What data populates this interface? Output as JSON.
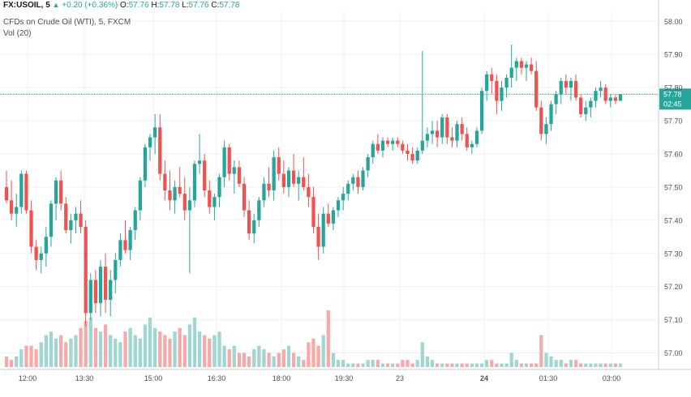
{
  "header": {
    "symbol": "FX:USOIL, 5",
    "change": "+0.20 (+0.36%)",
    "ohlc": [
      {
        "label": "O:",
        "value": "57.76"
      },
      {
        "label": "H:",
        "value": "57.78"
      },
      {
        "label": "L:",
        "value": "57.76"
      },
      {
        "label": "C:",
        "value": "57.78"
      }
    ],
    "instrument": "CFDs on Crude Oil (WTI), 5, FXCM",
    "volume_label": "Vol (20)"
  },
  "price_tag": {
    "price": "57.78",
    "countdown": "02:45"
  },
  "colors": {
    "up": "#26a69a",
    "down": "#ef5350",
    "vol_up": "#9fd6cf",
    "vol_down": "#f5aaa9",
    "grid": "#eef0f3",
    "axis_text": "#4a4f5c",
    "price_line": "#26a69a"
  },
  "chart_data": {
    "type": "candlestick",
    "x_ticks": [
      "12:00",
      "13:30",
      "15:00",
      "16:30",
      "18:00",
      "19:30",
      "23",
      "24",
      "01:30",
      "03:00"
    ],
    "y_ticks": [
      "58.00",
      "57.90",
      "57.80",
      "57.70",
      "57.60",
      "57.50",
      "57.40",
      "57.30",
      "57.20",
      "57.10",
      "57.00"
    ],
    "ylim": [
      56.95,
      58.03
    ],
    "last_price": 57.78,
    "grid": true,
    "candles": [
      [
        57.5,
        57.55,
        57.45,
        57.46
      ],
      [
        57.46,
        57.52,
        57.4,
        57.42
      ],
      [
        57.42,
        57.48,
        57.38,
        57.44
      ],
      [
        57.44,
        57.55,
        57.42,
        57.54
      ],
      [
        57.54,
        57.55,
        57.42,
        57.43
      ],
      [
        57.43,
        57.46,
        57.3,
        57.32
      ],
      [
        57.32,
        57.34,
        57.25,
        57.28
      ],
      [
        57.28,
        57.32,
        57.24,
        57.3
      ],
      [
        57.3,
        57.38,
        57.26,
        57.35
      ],
      [
        57.35,
        57.46,
        57.32,
        57.45
      ],
      [
        57.45,
        57.53,
        57.4,
        57.52
      ],
      [
        57.52,
        57.55,
        57.43,
        57.45
      ],
      [
        57.45,
        57.47,
        57.36,
        57.37
      ],
      [
        57.37,
        57.42,
        57.33,
        57.4
      ],
      [
        57.4,
        57.44,
        57.36,
        57.42
      ],
      [
        57.42,
        57.46,
        57.36,
        57.38
      ],
      [
        57.38,
        57.4,
        57.08,
        57.12
      ],
      [
        57.12,
        57.24,
        57.1,
        57.22
      ],
      [
        57.22,
        57.25,
        57.12,
        57.15
      ],
      [
        57.15,
        57.28,
        57.11,
        57.26
      ],
      [
        57.26,
        57.3,
        57.12,
        57.16
      ],
      [
        57.16,
        57.25,
        57.11,
        57.22
      ],
      [
        57.22,
        57.3,
        57.18,
        57.28
      ],
      [
        57.28,
        57.36,
        57.26,
        57.34
      ],
      [
        57.34,
        57.4,
        57.3,
        57.31
      ],
      [
        57.31,
        57.38,
        57.28,
        57.37
      ],
      [
        57.37,
        57.44,
        57.34,
        57.43
      ],
      [
        57.43,
        57.53,
        57.4,
        57.52
      ],
      [
        57.52,
        57.63,
        57.5,
        57.62
      ],
      [
        57.62,
        57.66,
        57.58,
        57.65
      ],
      [
        57.65,
        57.72,
        57.6,
        57.68
      ],
      [
        57.68,
        57.72,
        57.52,
        57.54
      ],
      [
        57.54,
        57.58,
        57.46,
        57.49
      ],
      [
        57.49,
        57.55,
        57.43,
        57.46
      ],
      [
        57.46,
        57.52,
        57.42,
        57.5
      ],
      [
        57.5,
        57.56,
        57.47,
        57.48
      ],
      [
        57.48,
        57.53,
        57.4,
        57.43
      ],
      [
        57.43,
        57.5,
        57.24,
        57.46
      ],
      [
        57.46,
        57.58,
        57.44,
        57.57
      ],
      [
        57.57,
        57.66,
        57.54,
        57.58
      ],
      [
        57.58,
        57.6,
        57.47,
        57.49
      ],
      [
        57.49,
        57.52,
        57.42,
        57.44
      ],
      [
        57.44,
        57.48,
        57.4,
        57.47
      ],
      [
        57.47,
        57.54,
        57.44,
        57.53
      ],
      [
        57.53,
        57.64,
        57.5,
        57.62
      ],
      [
        57.62,
        57.63,
        57.52,
        57.54
      ],
      [
        57.54,
        57.58,
        57.48,
        57.56
      ],
      [
        57.56,
        57.58,
        57.5,
        57.51
      ],
      [
        57.51,
        57.53,
        57.41,
        57.43
      ],
      [
        57.43,
        57.46,
        57.34,
        57.36
      ],
      [
        57.36,
        57.42,
        57.33,
        57.4
      ],
      [
        57.4,
        57.47,
        57.38,
        57.46
      ],
      [
        57.46,
        57.53,
        57.44,
        57.51
      ],
      [
        57.51,
        57.56,
        57.47,
        57.49
      ],
      [
        57.49,
        57.61,
        57.46,
        57.59
      ],
      [
        57.59,
        57.62,
        57.52,
        57.54
      ],
      [
        57.54,
        57.58,
        57.48,
        57.5
      ],
      [
        57.5,
        57.56,
        57.47,
        57.55
      ],
      [
        57.55,
        57.6,
        57.5,
        57.51
      ],
      [
        57.51,
        57.55,
        57.46,
        57.53
      ],
      [
        57.53,
        57.59,
        57.49,
        57.5
      ],
      [
        57.5,
        57.54,
        57.44,
        57.47
      ],
      [
        57.47,
        57.5,
        57.36,
        57.38
      ],
      [
        57.38,
        57.42,
        57.28,
        57.32
      ],
      [
        57.32,
        57.44,
        57.3,
        57.42
      ],
      [
        57.42,
        57.45,
        57.38,
        57.39
      ],
      [
        57.39,
        57.44,
        57.37,
        57.43
      ],
      [
        57.43,
        57.47,
        57.41,
        57.46
      ],
      [
        57.46,
        57.5,
        57.43,
        57.48
      ],
      [
        57.48,
        57.52,
        57.46,
        57.51
      ],
      [
        57.51,
        57.54,
        57.49,
        57.53
      ],
      [
        57.53,
        57.55,
        57.48,
        57.5
      ],
      [
        57.5,
        57.56,
        57.49,
        57.55
      ],
      [
        57.55,
        57.6,
        57.53,
        57.59
      ],
      [
        57.59,
        57.64,
        57.57,
        57.63
      ],
      [
        57.63,
        57.66,
        57.6,
        57.61
      ],
      [
        57.61,
        57.65,
        57.59,
        57.64
      ],
      [
        57.64,
        57.65,
        57.62,
        57.63
      ],
      [
        57.63,
        57.65,
        57.61,
        57.64
      ],
      [
        57.64,
        57.65,
        57.62,
        57.63
      ],
      [
        57.63,
        57.64,
        57.6,
        57.61
      ],
      [
        57.61,
        57.63,
        57.58,
        57.6
      ],
      [
        57.6,
        57.62,
        57.57,
        57.58
      ],
      [
        57.58,
        57.62,
        57.57,
        57.61
      ],
      [
        57.61,
        57.91,
        57.6,
        57.64
      ],
      [
        57.64,
        57.68,
        57.62,
        57.66
      ],
      [
        57.66,
        57.7,
        57.63,
        57.67
      ],
      [
        57.67,
        57.7,
        57.62,
        57.65
      ],
      [
        57.65,
        57.72,
        57.63,
        57.71
      ],
      [
        57.71,
        57.72,
        57.63,
        57.65
      ],
      [
        57.65,
        57.68,
        57.62,
        57.64
      ],
      [
        57.64,
        57.7,
        57.62,
        57.69
      ],
      [
        57.69,
        57.71,
        57.64,
        57.66
      ],
      [
        57.66,
        57.68,
        57.61,
        57.62
      ],
      [
        57.62,
        57.64,
        57.6,
        57.63
      ],
      [
        57.63,
        57.68,
        57.62,
        57.67
      ],
      [
        57.67,
        57.8,
        57.66,
        57.79
      ],
      [
        57.79,
        57.85,
        57.76,
        57.84
      ],
      [
        57.84,
        57.86,
        57.78,
        57.82
      ],
      [
        57.82,
        57.84,
        57.72,
        57.76
      ],
      [
        57.76,
        57.82,
        57.73,
        57.8
      ],
      [
        57.8,
        57.84,
        57.77,
        57.83
      ],
      [
        57.83,
        57.93,
        57.8,
        57.86
      ],
      [
        57.86,
        57.89,
        57.82,
        57.88
      ],
      [
        57.88,
        57.89,
        57.84,
        57.86
      ],
      [
        57.86,
        57.88,
        57.82,
        57.87
      ],
      [
        57.87,
        57.89,
        57.84,
        57.85
      ],
      [
        57.85,
        57.88,
        57.73,
        57.74
      ],
      [
        57.74,
        57.76,
        57.64,
        57.66
      ],
      [
        57.66,
        57.71,
        57.63,
        57.69
      ],
      [
        57.69,
        57.76,
        57.67,
        57.75
      ],
      [
        57.75,
        57.79,
        57.72,
        57.78
      ],
      [
        57.78,
        57.83,
        57.75,
        57.82
      ],
      [
        57.82,
        57.84,
        57.78,
        57.8
      ],
      [
        57.8,
        57.83,
        57.76,
        57.82
      ],
      [
        57.82,
        57.84,
        57.76,
        57.77
      ],
      [
        57.77,
        57.78,
        57.71,
        57.72
      ],
      [
        57.72,
        57.76,
        57.7,
        57.74
      ],
      [
        57.74,
        57.77,
        57.71,
        57.76
      ],
      [
        57.76,
        57.8,
        57.74,
        57.79
      ],
      [
        57.79,
        57.82,
        57.77,
        57.8
      ],
      [
        57.8,
        57.81,
        57.75,
        57.76
      ],
      [
        57.76,
        57.78,
        57.74,
        57.77
      ],
      [
        57.77,
        57.78,
        57.75,
        57.76
      ],
      [
        57.76,
        57.78,
        57.76,
        57.78
      ]
    ],
    "volumes": [
      3,
      2,
      3,
      5,
      6,
      6,
      5,
      7,
      9,
      10,
      8,
      9,
      7,
      8,
      9,
      11,
      13,
      14,
      11,
      10,
      12,
      9,
      8,
      7,
      10,
      11,
      9,
      8,
      12,
      14,
      11,
      10,
      9,
      8,
      10,
      11,
      9,
      12,
      14,
      10,
      9,
      8,
      9,
      10,
      6,
      5,
      6,
      4,
      4,
      3,
      5,
      6,
      5,
      4,
      3,
      4,
      5,
      6,
      4,
      3,
      2,
      7,
      8,
      6,
      9,
      16,
      4,
      2,
      2,
      1,
      1,
      1,
      1,
      2,
      2,
      2,
      1,
      1,
      1,
      1,
      2,
      2,
      1,
      2,
      7,
      3,
      2,
      1,
      1,
      1,
      1,
      1,
      1,
      1,
      1,
      1,
      1,
      2,
      2,
      1,
      1,
      1,
      4,
      2,
      1,
      1,
      1,
      1,
      9,
      4,
      3,
      2,
      2,
      1,
      2,
      2,
      1,
      1,
      1,
      1,
      1,
      1,
      1,
      1,
      1
    ]
  }
}
